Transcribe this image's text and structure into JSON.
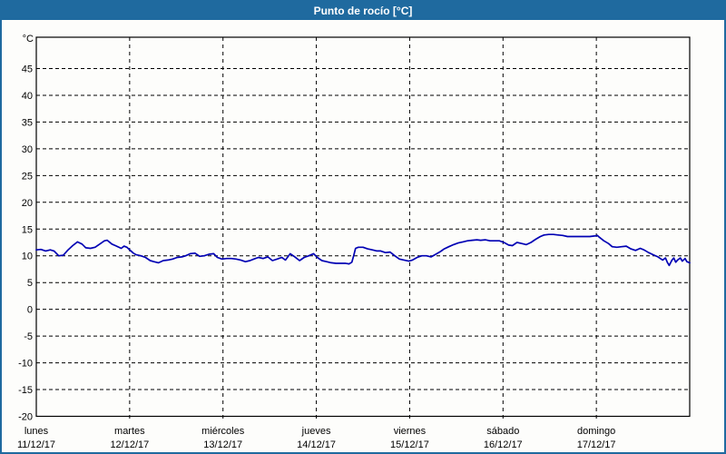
{
  "header": {
    "title": "Punto de rocío [°C]"
  },
  "colors": {
    "titlebar_bg": "#1f6a9f",
    "titlebar_text": "#ffffff",
    "window_border": "#1f6a9f",
    "plot_bg": "#fdfdfb",
    "grid": "#000000",
    "axis": "#000000",
    "label_text": "#000000",
    "series_line": "#0000b4"
  },
  "chart_data": {
    "type": "line",
    "title": "Punto de rocío [°C]",
    "y_unit_label": "°C",
    "ylim": [
      -20,
      51
    ],
    "yticks": [
      45,
      40,
      35,
      30,
      25,
      20,
      15,
      10,
      5,
      0,
      -5,
      -10,
      -15,
      -20
    ],
    "ytick_step": 5,
    "grid": "dashed",
    "legend_position": "none",
    "x_axis": {
      "unit": "days",
      "days": [
        {
          "name": "lunes",
          "date": "11/12/17"
        },
        {
          "name": "martes",
          "date": "12/12/17"
        },
        {
          "name": "miércoles",
          "date": "13/12/17"
        },
        {
          "name": "jueves",
          "date": "14/12/17"
        },
        {
          "name": "viernes",
          "date": "15/12/17"
        },
        {
          "name": "sábado",
          "date": "16/12/17"
        },
        {
          "name": "domingo",
          "date": "17/12/17"
        }
      ]
    },
    "series": [
      {
        "name": "Punto de rocío",
        "color": "#0000b4",
        "x_unit": "days_from_start",
        "points": [
          [
            0.0,
            11.1
          ],
          [
            0.05,
            11.2
          ],
          [
            0.1,
            10.9
          ],
          [
            0.15,
            11.1
          ],
          [
            0.19,
            10.9
          ],
          [
            0.24,
            10.0
          ],
          [
            0.29,
            10.1
          ],
          [
            0.34,
            11.1
          ],
          [
            0.39,
            11.9
          ],
          [
            0.44,
            12.6
          ],
          [
            0.49,
            12.2
          ],
          [
            0.53,
            11.5
          ],
          [
            0.58,
            11.4
          ],
          [
            0.63,
            11.6
          ],
          [
            0.68,
            12.2
          ],
          [
            0.73,
            12.8
          ],
          [
            0.76,
            12.9
          ],
          [
            0.81,
            12.2
          ],
          [
            0.86,
            11.8
          ],
          [
            0.91,
            11.4
          ],
          [
            0.94,
            11.8
          ],
          [
            0.97,
            11.6
          ],
          [
            1.0,
            11.1
          ],
          [
            1.04,
            10.5
          ],
          [
            1.07,
            10.2
          ],
          [
            1.12,
            10.0
          ],
          [
            1.17,
            9.7
          ],
          [
            1.22,
            9.1
          ],
          [
            1.26,
            8.9
          ],
          [
            1.31,
            8.7
          ],
          [
            1.36,
            9.1
          ],
          [
            1.41,
            9.2
          ],
          [
            1.46,
            9.4
          ],
          [
            1.51,
            9.7
          ],
          [
            1.56,
            9.8
          ],
          [
            1.6,
            10.0
          ],
          [
            1.65,
            10.4
          ],
          [
            1.7,
            10.5
          ],
          [
            1.75,
            9.9
          ],
          [
            1.8,
            10.0
          ],
          [
            1.85,
            10.3
          ],
          [
            1.9,
            10.4
          ],
          [
            1.94,
            9.7
          ],
          [
            1.99,
            9.4
          ],
          [
            2.04,
            9.5
          ],
          [
            2.09,
            9.5
          ],
          [
            2.14,
            9.4
          ],
          [
            2.19,
            9.2
          ],
          [
            2.24,
            8.9
          ],
          [
            2.29,
            9.1
          ],
          [
            2.33,
            9.4
          ],
          [
            2.38,
            9.7
          ],
          [
            2.43,
            9.5
          ],
          [
            2.48,
            9.8
          ],
          [
            2.53,
            9.1
          ],
          [
            2.58,
            9.4
          ],
          [
            2.63,
            9.7
          ],
          [
            2.67,
            9.2
          ],
          [
            2.72,
            10.4
          ],
          [
            2.77,
            9.8
          ],
          [
            2.82,
            9.1
          ],
          [
            2.87,
            9.7
          ],
          [
            2.92,
            10.0
          ],
          [
            2.97,
            10.4
          ],
          [
            3.01,
            9.7
          ],
          [
            3.06,
            9.1
          ],
          [
            3.11,
            8.9
          ],
          [
            3.16,
            8.7
          ],
          [
            3.21,
            8.6
          ],
          [
            3.26,
            8.6
          ],
          [
            3.31,
            8.6
          ],
          [
            3.35,
            8.5
          ],
          [
            3.38,
            8.8
          ],
          [
            3.4,
            10.0
          ],
          [
            3.42,
            11.4
          ],
          [
            3.45,
            11.6
          ],
          [
            3.5,
            11.6
          ],
          [
            3.55,
            11.3
          ],
          [
            3.6,
            11.1
          ],
          [
            3.65,
            10.9
          ],
          [
            3.69,
            10.9
          ],
          [
            3.74,
            10.6
          ],
          [
            3.79,
            10.7
          ],
          [
            3.84,
            10.0
          ],
          [
            3.89,
            9.4
          ],
          [
            3.94,
            9.2
          ],
          [
            3.99,
            9.0
          ],
          [
            4.03,
            9.2
          ],
          [
            4.08,
            9.7
          ],
          [
            4.13,
            10.0
          ],
          [
            4.18,
            10.0
          ],
          [
            4.23,
            9.8
          ],
          [
            4.28,
            10.3
          ],
          [
            4.33,
            10.8
          ],
          [
            4.37,
            11.3
          ],
          [
            4.42,
            11.7
          ],
          [
            4.47,
            12.1
          ],
          [
            4.52,
            12.4
          ],
          [
            4.57,
            12.6
          ],
          [
            4.62,
            12.8
          ],
          [
            4.67,
            12.9
          ],
          [
            4.72,
            13.0
          ],
          [
            4.76,
            12.9
          ],
          [
            4.81,
            13.0
          ],
          [
            4.86,
            12.8
          ],
          [
            4.91,
            12.8
          ],
          [
            4.96,
            12.8
          ],
          [
            5.01,
            12.5
          ],
          [
            5.06,
            12.0
          ],
          [
            5.1,
            11.9
          ],
          [
            5.15,
            12.5
          ],
          [
            5.2,
            12.3
          ],
          [
            5.25,
            12.1
          ],
          [
            5.3,
            12.5
          ],
          [
            5.35,
            13.1
          ],
          [
            5.4,
            13.6
          ],
          [
            5.44,
            13.9
          ],
          [
            5.49,
            14.0
          ],
          [
            5.54,
            14.0
          ],
          [
            5.59,
            13.9
          ],
          [
            5.64,
            13.8
          ],
          [
            5.69,
            13.6
          ],
          [
            5.74,
            13.6
          ],
          [
            5.79,
            13.6
          ],
          [
            5.83,
            13.6
          ],
          [
            5.88,
            13.6
          ],
          [
            5.93,
            13.6
          ],
          [
            5.98,
            13.7
          ],
          [
            6.01,
            13.8
          ],
          [
            6.03,
            13.5
          ],
          [
            6.08,
            12.8
          ],
          [
            6.13,
            12.3
          ],
          [
            6.17,
            11.7
          ],
          [
            6.22,
            11.6
          ],
          [
            6.27,
            11.7
          ],
          [
            6.32,
            11.8
          ],
          [
            6.37,
            11.3
          ],
          [
            6.42,
            11.0
          ],
          [
            6.47,
            11.4
          ],
          [
            6.51,
            11.1
          ],
          [
            6.56,
            10.6
          ],
          [
            6.61,
            10.2
          ],
          [
            6.66,
            9.8
          ],
          [
            6.71,
            9.2
          ],
          [
            6.74,
            9.6
          ],
          [
            6.76,
            8.8
          ],
          [
            6.78,
            8.2
          ],
          [
            6.81,
            9.2
          ],
          [
            6.83,
            9.6
          ],
          [
            6.85,
            8.8
          ],
          [
            6.87,
            9.2
          ],
          [
            6.9,
            9.6
          ],
          [
            6.92,
            9.0
          ],
          [
            6.95,
            9.5
          ],
          [
            6.97,
            8.9
          ],
          [
            7.0,
            8.7
          ]
        ]
      }
    ]
  }
}
